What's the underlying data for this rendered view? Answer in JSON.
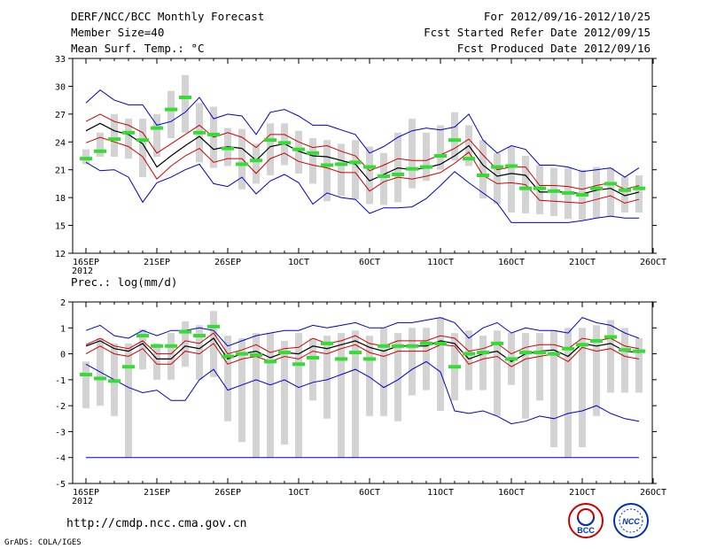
{
  "header": {
    "title": "DERF/NCC/BCC Monthly Forecast",
    "member_size": "Member Size=40",
    "variable1": "Mean Surf. Temp.: °C",
    "range": "For 2012/09/16-2012/10/25",
    "started": "Fcst Started Refer Date 2012/09/15",
    "produced": "Fcst Produced Date 2012/09/16"
  },
  "panel2_label": "Prec.: log(mm/d)",
  "footer": {
    "url": "http://cmdp.ncc.cma.gov.cn",
    "credit": "GrADS: COLA/IGES"
  },
  "logos": {
    "bcc": "BCC",
    "ncc": "NCC"
  },
  "colors": {
    "grid_box": "#d3d3d3",
    "mean_marker": "#33dd33",
    "envelope": "#0000cc",
    "spread": "#cc0000",
    "mean": "#000000"
  },
  "chart_data": [
    {
      "type": "line",
      "title": "Mean Surf. Temp.: °C",
      "x_tick_labels": [
        "16SEP\n2012",
        "21SEP",
        "26SEP",
        "1OCT",
        "6OCT",
        "11OCT",
        "16OCT",
        "21OCT",
        "26OCT"
      ],
      "x_tick_days": [
        0,
        5,
        10,
        15,
        20,
        25,
        30,
        35,
        40
      ],
      "ylim": [
        12,
        33
      ],
      "yticks": [
        12,
        15,
        18,
        21,
        24,
        27,
        30,
        33
      ],
      "days": 40,
      "series": [
        {
          "name": "max",
          "values": [
            28.2,
            29.6,
            28.5,
            28.0,
            28.0,
            25.8,
            26.2,
            27.2,
            28.8,
            26.5,
            27.0,
            26.8,
            24.8,
            27.2,
            27.5,
            26.8,
            25.8,
            25.8,
            25.3,
            24.8,
            22.8,
            23.5,
            24.5,
            25.2,
            25.5,
            25.3,
            25.6,
            27.0,
            24.2,
            22.8,
            23.6,
            23.2,
            21.5,
            21.5,
            21.3,
            20.8,
            21.0,
            21.2,
            20.2,
            21.2
          ]
        },
        {
          "name": "upper",
          "values": [
            26.2,
            27.0,
            26.2,
            25.8,
            25.0,
            22.8,
            23.8,
            24.8,
            25.8,
            24.5,
            25.0,
            24.5,
            23.4,
            24.8,
            24.8,
            24.0,
            23.4,
            23.6,
            23.0,
            22.5,
            20.9,
            21.5,
            22.2,
            22.0,
            22.0,
            22.6,
            23.3,
            24.3,
            22.6,
            21.0,
            21.3,
            21.3,
            19.3,
            19.3,
            19.2,
            18.9,
            19.3,
            19.6,
            18.9,
            19.3
          ]
        },
        {
          "name": "mean",
          "values": [
            25.2,
            26.0,
            25.2,
            24.8,
            23.8,
            21.3,
            22.5,
            23.6,
            24.6,
            23.2,
            23.5,
            23.3,
            22.0,
            23.5,
            23.8,
            23.0,
            22.5,
            22.4,
            22.0,
            21.6,
            19.8,
            20.5,
            21.2,
            21.0,
            21.2,
            21.6,
            22.5,
            23.6,
            21.5,
            20.3,
            20.6,
            20.4,
            18.6,
            18.6,
            18.6,
            18.4,
            18.8,
            19.0,
            18.2,
            18.6
          ]
        },
        {
          "name": "lower",
          "values": [
            23.9,
            24.5,
            24.0,
            23.5,
            22.4,
            20.0,
            21.4,
            22.5,
            23.3,
            21.8,
            22.2,
            22.2,
            20.6,
            22.2,
            22.8,
            21.9,
            21.5,
            21.2,
            20.7,
            20.7,
            18.7,
            19.7,
            20.2,
            20.0,
            20.3,
            20.7,
            21.7,
            22.9,
            20.4,
            19.5,
            19.6,
            19.4,
            17.7,
            17.6,
            17.5,
            17.4,
            17.8,
            18.2,
            17.4,
            17.8
          ]
        },
        {
          "name": "min",
          "values": [
            21.8,
            20.9,
            21.0,
            20.2,
            17.5,
            19.6,
            20.2,
            21.0,
            21.6,
            19.5,
            19.2,
            20.2,
            18.4,
            19.8,
            20.5,
            19.6,
            17.3,
            18.5,
            18.0,
            17.8,
            16.3,
            16.9,
            16.9,
            17.0,
            17.9,
            19.3,
            20.8,
            19.6,
            18.5,
            17.4,
            15.3,
            15.3,
            15.3,
            15.3,
            15.3,
            15.5,
            15.8,
            16.0,
            15.8,
            15.8
          ]
        },
        {
          "name": "obs",
          "values": [
            22.2,
            23.0,
            24.3,
            25.0,
            24.2,
            25.5,
            27.5,
            28.8,
            25.0,
            24.8,
            23.3,
            21.6,
            22.0,
            24.2,
            23.9,
            23.2,
            22.8,
            21.5,
            21.6,
            21.8,
            21.3,
            20.3,
            20.5,
            21.1,
            21.3,
            22.5,
            24.2,
            22.2,
            20.4,
            21.3,
            21.4,
            19.0,
            19.0,
            18.7,
            18.5,
            18.3,
            19.0,
            19.5,
            18.8,
            19.0
          ]
        },
        {
          "name": "box_hi",
          "values": [
            23.2,
            25.0,
            27.0,
            26.5,
            26.5,
            27.0,
            29.5,
            31.2,
            28.2,
            27.8,
            25.5,
            25.4,
            23.8,
            26.0,
            26.0,
            25.2,
            24.4,
            24.2,
            23.8,
            24.2,
            23.5,
            22.8,
            25.0,
            26.5,
            25.0,
            25.8,
            27.2,
            25.8,
            24.2,
            22.8,
            23.5,
            22.5,
            21.5,
            21.2,
            21.2,
            21.0,
            21.3,
            21.2,
            20.2,
            20.4
          ]
        },
        {
          "name": "box_lo",
          "values": [
            21.6,
            22.4,
            22.4,
            22.2,
            20.2,
            22.4,
            24.4,
            25.0,
            21.8,
            21.2,
            21.4,
            18.9,
            19.5,
            20.4,
            21.5,
            20.6,
            19.5,
            17.6,
            18.2,
            17.8,
            17.3,
            17.2,
            17.5,
            19.0,
            19.8,
            21.0,
            22.0,
            21.4,
            17.9,
            17.3,
            16.4,
            16.3,
            16.2,
            16.0,
            15.7,
            15.6,
            15.8,
            16.0,
            16.4,
            16.4
          ]
        }
      ]
    },
    {
      "type": "line",
      "title": "Prec.: log(mm/d)",
      "x_tick_labels": [
        "16SEP\n2012",
        "21SEP",
        "26SEP",
        "1OCT",
        "6OCT",
        "11OCT",
        "16OCT",
        "21OCT",
        "26OCT"
      ],
      "x_tick_days": [
        0,
        5,
        10,
        15,
        20,
        25,
        30,
        35,
        40
      ],
      "ylim": [
        -5,
        2
      ],
      "yticks": [
        -5,
        -4,
        -3,
        -2,
        -1,
        0,
        1,
        2
      ],
      "days": 40,
      "series": [
        {
          "name": "max",
          "values": [
            0.9,
            1.1,
            0.7,
            0.6,
            0.9,
            0.7,
            0.9,
            0.9,
            1.0,
            0.9,
            0.3,
            0.5,
            0.7,
            0.8,
            0.9,
            0.9,
            1.1,
            1.0,
            1.1,
            1.2,
            1.0,
            1.0,
            1.2,
            1.2,
            1.3,
            1.4,
            1.2,
            0.6,
            1.0,
            1.2,
            0.8,
            1.0,
            0.9,
            0.9,
            0.8,
            1.4,
            1.2,
            1.1,
            0.8,
            0.6
          ]
        },
        {
          "name": "upper",
          "values": [
            0.35,
            0.6,
            0.3,
            0.2,
            0.5,
            0.0,
            0.0,
            0.5,
            0.4,
            0.8,
            0.0,
            0.15,
            0.35,
            0.05,
            0.2,
            0.25,
            0.6,
            0.4,
            0.5,
            0.7,
            0.4,
            0.3,
            0.5,
            0.5,
            0.5,
            0.7,
            0.6,
            0.1,
            0.2,
            0.4,
            0.0,
            0.25,
            0.35,
            0.35,
            0.2,
            0.6,
            0.5,
            0.6,
            0.3,
            0.2
          ]
        },
        {
          "name": "mean",
          "values": [
            0.3,
            0.5,
            0.2,
            0.1,
            0.4,
            -0.2,
            -0.2,
            0.3,
            0.2,
            0.6,
            -0.2,
            0.0,
            0.1,
            -0.15,
            0.05,
            0.0,
            0.3,
            0.2,
            0.35,
            0.5,
            0.25,
            0.1,
            0.3,
            0.3,
            0.3,
            0.5,
            0.4,
            -0.2,
            0.0,
            0.1,
            -0.3,
            0.0,
            0.1,
            0.15,
            -0.1,
            0.4,
            0.3,
            0.4,
            0.1,
            0.05
          ]
        },
        {
          "name": "lower",
          "values": [
            0.0,
            0.3,
            0.0,
            -0.1,
            0.2,
            -0.4,
            -0.4,
            0.1,
            0.0,
            0.4,
            -0.4,
            -0.2,
            -0.1,
            -0.3,
            -0.1,
            -0.2,
            0.1,
            0.0,
            0.2,
            0.35,
            0.05,
            -0.1,
            0.1,
            0.1,
            0.1,
            0.35,
            0.3,
            -0.4,
            -0.2,
            -0.1,
            -0.5,
            -0.2,
            -0.1,
            0.0,
            -0.3,
            0.25,
            0.1,
            0.2,
            -0.1,
            -0.2
          ]
        },
        {
          "name": "min",
          "values": [
            -0.4,
            -0.7,
            -1.0,
            -1.3,
            -1.5,
            -1.4,
            -1.8,
            -1.8,
            -1.0,
            -0.6,
            -1.4,
            -1.2,
            -1.0,
            -1.2,
            -1.0,
            -1.3,
            -1.1,
            -1.0,
            -0.8,
            -0.6,
            -0.9,
            -1.3,
            -1.0,
            -0.6,
            -0.3,
            -0.7,
            -2.2,
            -2.3,
            -2.2,
            -2.4,
            -2.7,
            -2.6,
            -2.4,
            -2.5,
            -2.3,
            -2.2,
            -2.0,
            -2.3,
            -2.5,
            -2.6
          ]
        },
        {
          "name": "obs",
          "values": [
            -0.8,
            -0.95,
            -1.05,
            -0.5,
            0.7,
            0.3,
            0.3,
            0.85,
            0.7,
            1.05,
            -0.1,
            0.0,
            -0.05,
            -0.3,
            0.05,
            -0.4,
            -0.15,
            0.4,
            -0.2,
            0.05,
            -0.2,
            0.3,
            0.3,
            0.3,
            0.4,
            0.4,
            -0.5,
            0.0,
            0.05,
            0.4,
            -0.2,
            0.05,
            0.05,
            0.0,
            0.2,
            0.35,
            0.5,
            0.65,
            0.15,
            0.1
          ]
        },
        {
          "name": "box_hi",
          "values": [
            -0.3,
            0.6,
            0.4,
            0.4,
            0.95,
            0.4,
            0.8,
            1.25,
            1.1,
            1.65,
            0.7,
            0.6,
            0.8,
            0.8,
            0.5,
            0.8,
            0.6,
            0.7,
            0.8,
            0.9,
            0.7,
            1.0,
            0.8,
            1.0,
            1.0,
            1.4,
            0.8,
            0.9,
            0.7,
            0.9,
            0.8,
            0.8,
            0.8,
            0.9,
            1.0,
            1.0,
            1.1,
            1.3,
            1.0,
            0.6
          ]
        },
        {
          "name": "box_lo",
          "values": [
            -2.1,
            -2.0,
            -2.4,
            -4.0,
            -0.6,
            -1.0,
            -1.0,
            -0.5,
            -1.0,
            -0.9,
            -2.6,
            -3.4,
            -4.0,
            -4.0,
            -3.5,
            -4.0,
            -1.8,
            -2.5,
            -4.0,
            -4.0,
            -2.4,
            -2.4,
            -2.6,
            -1.6,
            -1.4,
            -2.2,
            -1.8,
            -1.4,
            -1.4,
            -2.4,
            -1.2,
            -2.5,
            -1.8,
            -3.6,
            -4.0,
            -3.6,
            -2.4,
            -1.5,
            -1.5,
            -1.5
          ]
        },
        {
          "name": "floor",
          "values": [
            -4,
            -4,
            -4,
            -4,
            -4,
            -4,
            -4,
            -4,
            -4,
            -4,
            -4,
            -4,
            -4,
            -4,
            -4,
            -4,
            -4,
            -4,
            -4,
            -4,
            -4,
            -4,
            -4,
            -4,
            -4,
            -4,
            -4,
            -4,
            -4,
            -4,
            -4,
            -4,
            -4,
            -4,
            -4,
            -4,
            -4,
            -4,
            -4,
            -4
          ]
        }
      ]
    }
  ]
}
